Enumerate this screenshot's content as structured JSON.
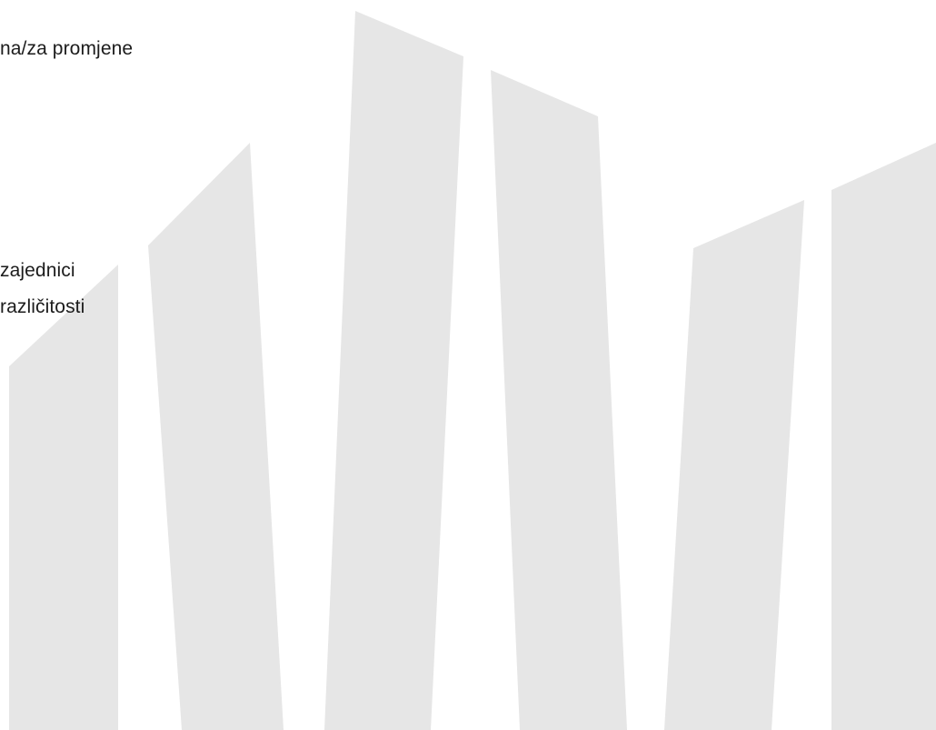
{
  "text_lines": [
    "na/za promjene",
    "zajednici",
    "različitosti"
  ],
  "colors": {
    "background": "#ffffff",
    "decorative_shapes": "#e6e6e6",
    "text": "#1c1c1c"
  }
}
